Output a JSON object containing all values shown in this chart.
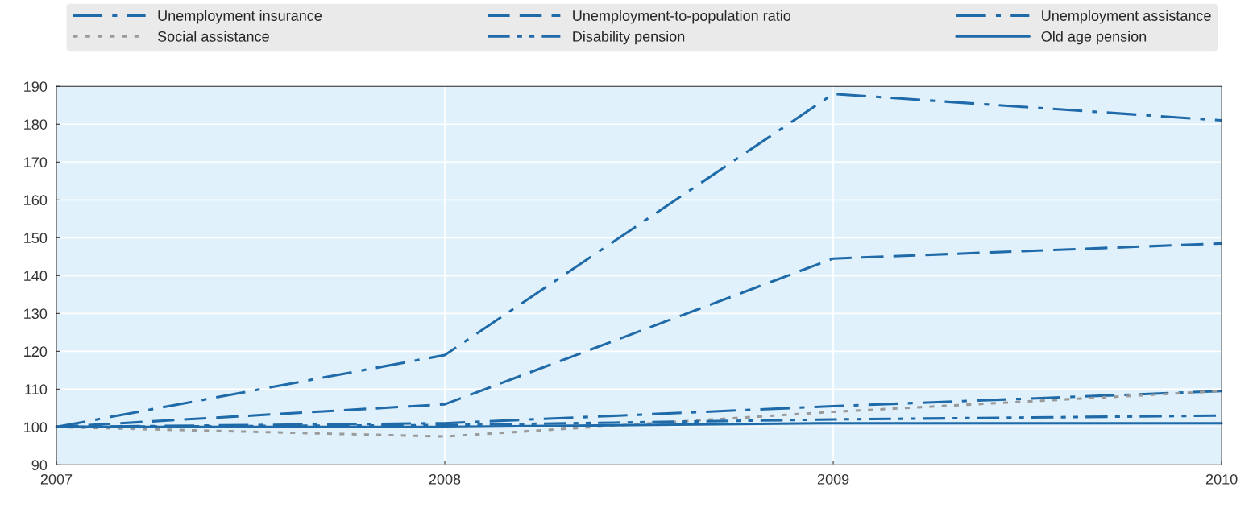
{
  "chart_data": {
    "type": "line",
    "x": [
      2007,
      2008,
      2009,
      2010
    ],
    "series": [
      {
        "name": "Unemployment insurance",
        "color": "#1f6aa8",
        "line_style": "dashdot",
        "values": [
          100,
          119,
          188,
          181
        ]
      },
      {
        "name": "Unemployment-to-population ratio",
        "color": "#1f6aa8",
        "line_style": "dashed",
        "values": [
          100,
          106,
          144.5,
          148.5
        ]
      },
      {
        "name": "Unemployment assistance",
        "color": "#1f6aa8",
        "line_style": "dashdot",
        "values": [
          100,
          101,
          105.5,
          109.5
        ]
      },
      {
        "name": "Social assistance",
        "color": "#9a9a9a",
        "line_style": "dotted",
        "values": [
          100,
          97.5,
          104,
          109.5
        ]
      },
      {
        "name": "Disability pension",
        "color": "#1f6aa8",
        "line_style": "dashdotdot",
        "values": [
          100,
          100.5,
          102,
          103
        ]
      },
      {
        "name": "Old age pension",
        "color": "#1f6aa8",
        "line_style": "solid",
        "values": [
          100,
          100,
          101,
          101
        ]
      }
    ],
    "xlim": [
      2007,
      2010
    ],
    "xticks": [
      2007,
      2008,
      2009,
      2010
    ],
    "ylim": [
      90,
      190
    ],
    "yticks": [
      90,
      100,
      110,
      120,
      130,
      140,
      150,
      160,
      170,
      180,
      190
    ],
    "grid": true,
    "legend": "top",
    "marker": "none"
  }
}
